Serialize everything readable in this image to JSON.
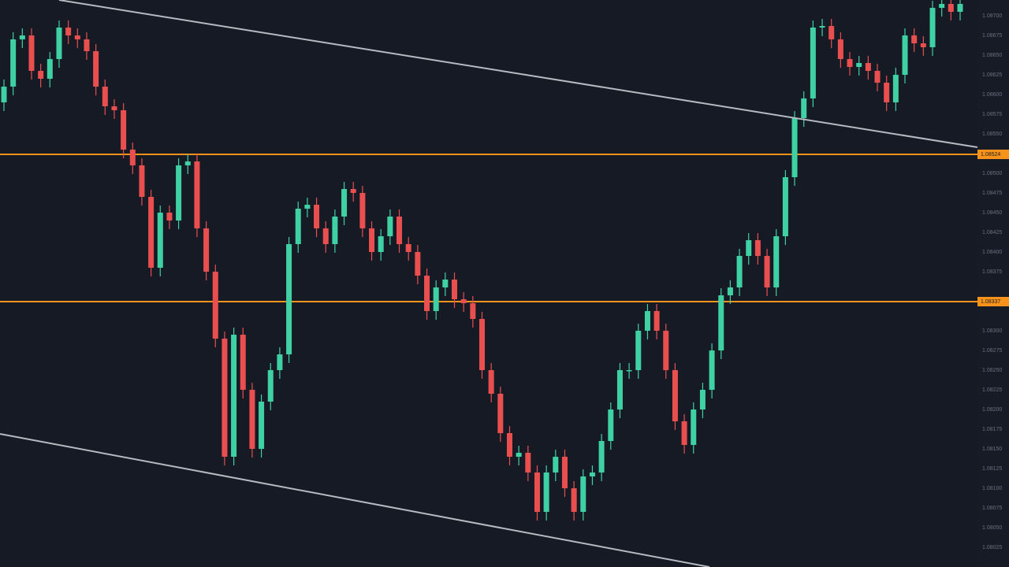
{
  "chart_data": {
    "type": "candlestick",
    "up_color": "#3fd1a3",
    "down_color": "#ea4f4f",
    "level_color": "#f7931a",
    "ylim": [
      1.08,
      1.0872
    ],
    "yticks": [
      {
        "value": 1.087,
        "label": "1.08700"
      },
      {
        "value": 1.08675,
        "label": "1.08675"
      },
      {
        "value": 1.0865,
        "label": "1.08650"
      },
      {
        "value": 1.08625,
        "label": "1.08625"
      },
      {
        "value": 1.086,
        "label": "1.08600"
      },
      {
        "value": 1.08575,
        "label": "1.08575"
      },
      {
        "value": 1.0855,
        "label": "1.08550"
      },
      {
        "value": 1.085,
        "label": "1.08500"
      },
      {
        "value": 1.08475,
        "label": "1.08475"
      },
      {
        "value": 1.0845,
        "label": "1.08450"
      },
      {
        "value": 1.08425,
        "label": "1.08425"
      },
      {
        "value": 1.084,
        "label": "1.08400"
      },
      {
        "value": 1.08375,
        "label": "1.08375"
      },
      {
        "value": 1.083,
        "label": "1.08300"
      },
      {
        "value": 1.08275,
        "label": "1.08275"
      },
      {
        "value": 1.0825,
        "label": "1.08250"
      },
      {
        "value": 1.08225,
        "label": "1.08225"
      },
      {
        "value": 1.082,
        "label": "1.08200"
      },
      {
        "value": 1.08175,
        "label": "1.08175"
      },
      {
        "value": 1.0815,
        "label": "1.08150"
      },
      {
        "value": 1.08125,
        "label": "1.08125"
      },
      {
        "value": 1.081,
        "label": "1.08100"
      },
      {
        "value": 1.08075,
        "label": "1.08075"
      },
      {
        "value": 1.0805,
        "label": "1.08050"
      },
      {
        "value": 1.08025,
        "label": "1.08025"
      }
    ],
    "levels": [
      1.08524,
      1.08337
    ],
    "open": [
      1.0859,
      1.0861,
      1.0867,
      1.08675,
      1.0863,
      1.0862,
      1.08645,
      1.08685,
      1.08675,
      1.0867,
      1.08655,
      1.0861,
      1.08585,
      1.0858,
      1.0853,
      1.0851,
      1.0847,
      1.0838,
      1.0845,
      1.0844,
      1.0851,
      1.08515,
      1.0843,
      1.08375,
      1.0829,
      1.0814,
      1.08295,
      1.08225,
      1.0815,
      1.0821,
      1.0825,
      1.0827,
      1.0841,
      1.08455,
      1.0846,
      1.0843,
      1.0841,
      1.08445,
      1.0848,
      1.08475,
      1.0843,
      1.084,
      1.0842,
      1.08445,
      1.0841,
      1.084,
      1.0837,
      1.08325,
      1.08355,
      1.08365,
      1.0834,
      1.08335,
      1.08315,
      1.0825,
      1.0822,
      1.0817,
      1.0814,
      1.08145,
      1.0812,
      1.0807,
      1.0812,
      1.0814,
      1.081,
      1.0807,
      1.08115,
      1.0812,
      1.0816,
      1.082,
      1.0825,
      1.0825,
      1.083,
      1.08325,
      1.083,
      1.0825,
      1.08185,
      1.08155,
      1.082,
      1.08225,
      1.08275,
      1.08345,
      1.08355,
      1.08395,
      1.08415,
      1.08395,
      1.08355,
      1.0842,
      1.08495,
      1.0857,
      1.08595,
      1.08685,
      1.08687,
      1.0867,
      1.08645,
      1.08635,
      1.0864,
      1.0863,
      1.08615,
      1.0859,
      1.08625,
      1.08675,
      1.08665,
      1.0866,
      1.0871,
      1.08715,
      1.08705
    ],
    "high": [
      1.08619,
      1.08679,
      1.08684,
      1.08684,
      1.08639,
      1.08654,
      1.08694,
      1.08694,
      1.08684,
      1.08679,
      1.08664,
      1.08619,
      1.08594,
      1.08589,
      1.08539,
      1.08519,
      1.08479,
      1.08459,
      1.08459,
      1.08519,
      1.08524,
      1.08524,
      1.08439,
      1.08384,
      1.08299,
      1.08304,
      1.08304,
      1.08234,
      1.08219,
      1.08259,
      1.08279,
      1.08419,
      1.08464,
      1.08469,
      1.08469,
      1.08439,
      1.08454,
      1.08489,
      1.08489,
      1.08484,
      1.08439,
      1.08429,
      1.08454,
      1.08454,
      1.08419,
      1.08409,
      1.08379,
      1.08364,
      1.08374,
      1.08374,
      1.08349,
      1.08344,
      1.08324,
      1.08259,
      1.08229,
      1.08179,
      1.08154,
      1.08154,
      1.08129,
      1.08129,
      1.08149,
      1.08149,
      1.08109,
      1.08124,
      1.08129,
      1.08169,
      1.08209,
      1.08259,
      1.08259,
      1.08309,
      1.08334,
      1.08334,
      1.08309,
      1.08259,
      1.08194,
      1.08209,
      1.08234,
      1.08284,
      1.08354,
      1.08364,
      1.08404,
      1.08424,
      1.08424,
      1.08404,
      1.08429,
      1.08504,
      1.08579,
      1.08604,
      1.08694,
      1.08696,
      1.08696,
      1.08679,
      1.08654,
      1.08649,
      1.08649,
      1.08639,
      1.08624,
      1.08634,
      1.08684,
      1.08684,
      1.08674,
      1.08719,
      1.08724,
      1.08724,
      1.08724
    ],
    "low": [
      1.08579,
      1.08599,
      1.08659,
      1.08619,
      1.08609,
      1.08609,
      1.08634,
      1.08664,
      1.08659,
      1.08644,
      1.08599,
      1.08574,
      1.08569,
      1.08519,
      1.08499,
      1.08459,
      1.08369,
      1.08369,
      1.08429,
      1.08429,
      1.08499,
      1.08419,
      1.08364,
      1.08279,
      1.08129,
      1.08129,
      1.08214,
      1.08139,
      1.08139,
      1.08199,
      1.08239,
      1.08259,
      1.08399,
      1.08444,
      1.08419,
      1.08399,
      1.08399,
      1.08434,
      1.08464,
      1.08419,
      1.08389,
      1.08389,
      1.08409,
      1.08399,
      1.08389,
      1.08359,
      1.08314,
      1.08314,
      1.08344,
      1.08329,
      1.08324,
      1.08304,
      1.08239,
      1.08209,
      1.08159,
      1.08129,
      1.08129,
      1.08109,
      1.08059,
      1.08059,
      1.08109,
      1.08089,
      1.08059,
      1.08059,
      1.08104,
      1.08109,
      1.08149,
      1.08189,
      1.08239,
      1.08239,
      1.08289,
      1.08289,
      1.08239,
      1.08174,
      1.08144,
      1.08144,
      1.08189,
      1.08214,
      1.08264,
      1.08334,
      1.08344,
      1.08384,
      1.08384,
      1.08344,
      1.08344,
      1.08409,
      1.08484,
      1.08559,
      1.08584,
      1.08674,
      1.08659,
      1.08634,
      1.08624,
      1.08624,
      1.08619,
      1.08604,
      1.08579,
      1.08579,
      1.08614,
      1.08654,
      1.08649,
      1.08649,
      1.08699,
      1.08694,
      1.08694
    ],
    "close": [
      1.0861,
      1.0867,
      1.08675,
      1.0863,
      1.0862,
      1.08645,
      1.08685,
      1.08675,
      1.0867,
      1.08655,
      1.0861,
      1.08585,
      1.0858,
      1.0853,
      1.0851,
      1.0847,
      1.0838,
      1.0845,
      1.0844,
      1.0851,
      1.08515,
      1.0843,
      1.08375,
      1.0829,
      1.0814,
      1.08295,
      1.08225,
      1.0815,
      1.0821,
      1.0825,
      1.0827,
      1.0841,
      1.08455,
      1.0846,
      1.0843,
      1.0841,
      1.08445,
      1.0848,
      1.08475,
      1.0843,
      1.084,
      1.0842,
      1.08445,
      1.0841,
      1.084,
      1.0837,
      1.08325,
      1.08355,
      1.08365,
      1.0834,
      1.08335,
      1.08315,
      1.0825,
      1.0822,
      1.0817,
      1.0814,
      1.08145,
      1.0812,
      1.0807,
      1.0812,
      1.0814,
      1.081,
      1.0807,
      1.08115,
      1.0812,
      1.0816,
      1.082,
      1.0825,
      1.0825,
      1.083,
      1.08325,
      1.083,
      1.0825,
      1.08185,
      1.08155,
      1.082,
      1.08225,
      1.08275,
      1.08345,
      1.08355,
      1.08395,
      1.08415,
      1.08395,
      1.08355,
      1.0842,
      1.08495,
      1.0857,
      1.08595,
      1.08685,
      1.08687,
      1.0867,
      1.08645,
      1.08635,
      1.0864,
      1.0863,
      1.08615,
      1.0859,
      1.08625,
      1.08675,
      1.08665,
      1.0866,
      1.0871,
      1.08715,
      1.08705,
      1.08715
    ]
  }
}
